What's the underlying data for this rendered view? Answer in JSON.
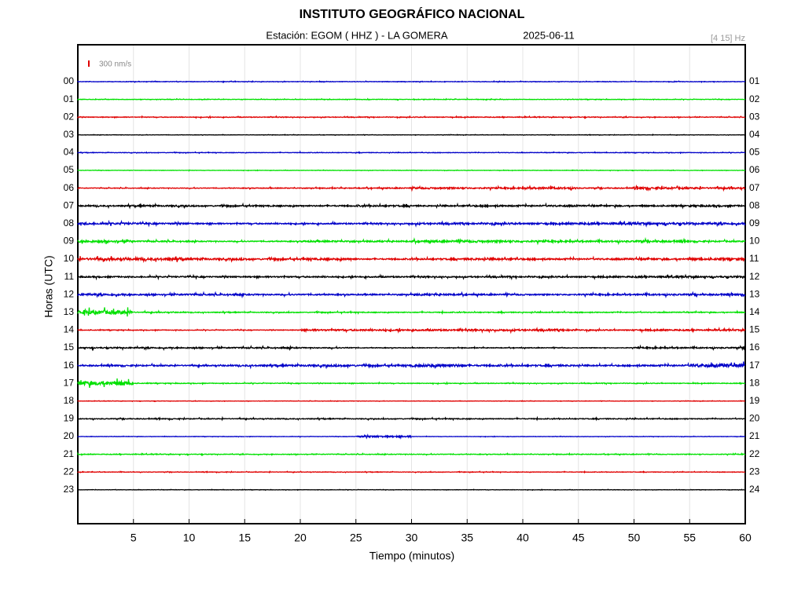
{
  "chart_data": {
    "type": "helicorder",
    "title": "INSTITUTO GEOGRÁFICO NACIONAL",
    "station": "Estación:  EGOM ( HHZ ) - LA GOMERA",
    "date": "2025-06-11",
    "filter": "[4 15] Hz",
    "scale": {
      "value": 300,
      "label": "300 nm/s"
    },
    "xlabel": "Tiempo (minutos)",
    "ylabel": "Horas (UTC)",
    "xlim": [
      0,
      60
    ],
    "xticks": [
      5,
      10,
      15,
      20,
      25,
      30,
      35,
      40,
      45,
      50,
      55,
      60
    ],
    "grid": true,
    "rows": [
      {
        "label": "00",
        "right_label": "01",
        "color": "#0000c8",
        "amplitude": [
          30,
          30,
          30,
          30,
          30,
          30,
          30,
          30,
          30,
          30,
          30,
          30
        ]
      },
      {
        "label": "01",
        "right_label": "02",
        "color": "#00e000",
        "amplitude": [
          30,
          30,
          30,
          30,
          30,
          30,
          30,
          30,
          30,
          30,
          30,
          30
        ]
      },
      {
        "label": "02",
        "right_label": "03",
        "color": "#e00000",
        "amplitude": [
          40,
          40,
          40,
          40,
          40,
          40,
          40,
          40,
          40,
          40,
          40,
          40
        ]
      },
      {
        "label": "03",
        "right_label": "04",
        "color": "#000000",
        "amplitude": [
          20,
          20,
          20,
          20,
          20,
          20,
          20,
          20,
          20,
          20,
          20,
          20
        ]
      },
      {
        "label": "04",
        "right_label": "05",
        "color": "#0000c8",
        "amplitude": [
          30,
          30,
          30,
          30,
          30,
          30,
          30,
          30,
          30,
          30,
          30,
          30
        ]
      },
      {
        "label": "05",
        "right_label": "06",
        "color": "#00e000",
        "amplitude": [
          20,
          20,
          20,
          20,
          20,
          20,
          20,
          20,
          20,
          20,
          20,
          20
        ]
      },
      {
        "label": "06",
        "right_label": "07",
        "color": "#e00000",
        "amplitude": [
          40,
          40,
          40,
          50,
          50,
          60,
          100,
          80,
          120,
          60,
          120,
          100
        ]
      },
      {
        "label": "07",
        "right_label": "08",
        "color": "#000000",
        "amplitude": [
          80,
          100,
          80,
          80,
          80,
          100,
          80,
          100,
          100,
          80,
          80,
          100
        ]
      },
      {
        "label": "08",
        "right_label": "09",
        "color": "#0000c8",
        "amplitude": [
          120,
          100,
          80,
          80,
          80,
          80,
          100,
          100,
          100,
          120,
          130,
          120
        ]
      },
      {
        "label": "09",
        "right_label": "10",
        "color": "#00e000",
        "amplitude": [
          150,
          80,
          60,
          60,
          100,
          80,
          120,
          130,
          100,
          100,
          120,
          80
        ]
      },
      {
        "label": "10",
        "right_label": "11",
        "color": "#e00000",
        "amplitude": [
          150,
          150,
          120,
          100,
          120,
          80,
          100,
          120,
          100,
          100,
          100,
          120
        ]
      },
      {
        "label": "11",
        "right_label": "12",
        "color": "#000000",
        "amplitude": [
          80,
          80,
          80,
          80,
          80,
          80,
          80,
          80,
          80,
          80,
          100,
          100
        ]
      },
      {
        "label": "12",
        "right_label": "13",
        "color": "#0000c8",
        "amplitude": [
          120,
          100,
          100,
          80,
          80,
          80,
          100,
          80,
          80,
          80,
          100,
          100
        ]
      },
      {
        "label": "13",
        "right_label": "14",
        "color": "#00e000",
        "amplitude": [
          250,
          60,
          50,
          50,
          50,
          50,
          50,
          50,
          50,
          50,
          50,
          50
        ]
      },
      {
        "label": "14",
        "right_label": "15",
        "color": "#e00000",
        "amplitude": [
          40,
          40,
          40,
          40,
          100,
          100,
          100,
          100,
          100,
          60,
          80,
          80
        ]
      },
      {
        "label": "15",
        "right_label": "16",
        "color": "#000000",
        "amplitude": [
          80,
          80,
          80,
          80,
          60,
          40,
          40,
          40,
          40,
          40,
          80,
          80
        ]
      },
      {
        "label": "16",
        "right_label": "17",
        "color": "#0000c8",
        "amplitude": [
          80,
          80,
          80,
          100,
          120,
          100,
          180,
          100,
          100,
          80,
          100,
          200
        ]
      },
      {
        "label": "17",
        "right_label": "18",
        "color": "#00e000",
        "amplitude": [
          250,
          40,
          40,
          40,
          40,
          40,
          40,
          40,
          40,
          40,
          40,
          40
        ]
      },
      {
        "label": "18",
        "right_label": "19",
        "color": "#e00000",
        "amplitude": [
          20,
          20,
          20,
          20,
          20,
          20,
          20,
          20,
          20,
          20,
          20,
          20
        ]
      },
      {
        "label": "19",
        "right_label": "20",
        "color": "#000000",
        "amplitude": [
          50,
          50,
          50,
          50,
          50,
          50,
          50,
          50,
          50,
          50,
          50,
          50
        ]
      },
      {
        "label": "20",
        "right_label": "21",
        "color": "#0000c8",
        "amplitude": [
          20,
          20,
          20,
          20,
          20,
          100,
          20,
          20,
          20,
          20,
          20,
          20
        ]
      },
      {
        "label": "21",
        "right_label": "22",
        "color": "#00e000",
        "amplitude": [
          40,
          40,
          40,
          40,
          40,
          40,
          40,
          40,
          40,
          40,
          40,
          40
        ]
      },
      {
        "label": "22",
        "right_label": "23",
        "color": "#e00000",
        "amplitude": [
          30,
          30,
          30,
          30,
          30,
          30,
          30,
          30,
          30,
          30,
          30,
          30
        ]
      },
      {
        "label": "23",
        "right_label": "24",
        "color": "#000000",
        "amplitude": [
          20,
          20,
          20,
          20,
          20,
          20,
          20,
          20,
          20,
          20,
          20,
          20
        ]
      }
    ]
  }
}
